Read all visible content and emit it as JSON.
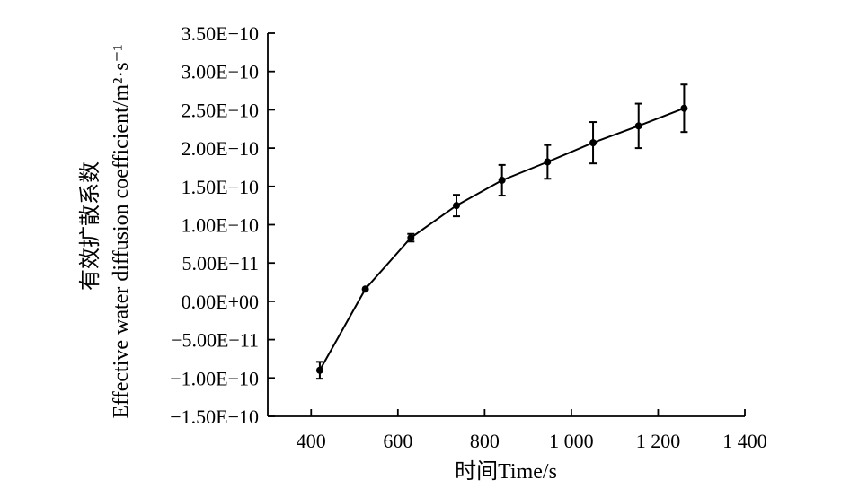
{
  "chart_data": {
    "type": "line",
    "title": "",
    "xlabel": "时间Time/s",
    "ylabel_cn": "有效扩散系数",
    "ylabel_en": "Effective water diffusion coefficient/m²·s⁻¹",
    "xlim": [
      300,
      1400
    ],
    "ylim": [
      -1.5e-10,
      3.5e-10
    ],
    "x_ticks": [
      400,
      600,
      800,
      1000,
      1200,
      1400
    ],
    "x_tick_labels": [
      "400",
      "600",
      "800",
      "1 000",
      "1 200",
      "1 400"
    ],
    "y_ticks": [
      3.5e-10,
      3e-10,
      2.5e-10,
      2e-10,
      1.5e-10,
      1e-10,
      5e-11,
      0,
      -5e-11,
      -1e-10,
      -1.5e-10
    ],
    "y_tick_labels": [
      "3.50E−10",
      "3.00E−10",
      "2.50E−10",
      "2.00E−10",
      "1.50E−10",
      "1.00E−10",
      "5.00E−11",
      "0.00E+00",
      "−5.00E−11",
      "−1.00E−10",
      "−1.50E−10"
    ],
    "grid": false,
    "legend": "none",
    "series": [
      {
        "x": [
          420,
          525,
          630,
          735,
          840,
          945,
          1050,
          1155,
          1260
        ],
        "y": [
          -9e-11,
          1.6e-11,
          8.3e-11,
          1.25e-10,
          1.58e-10,
          1.82e-10,
          2.07e-10,
          2.29e-10,
          2.52e-10
        ],
        "error": [
          1.1e-11,
          0,
          5e-12,
          1.4e-11,
          2e-11,
          2.2e-11,
          2.7e-11,
          2.9e-11,
          3.1e-11
        ],
        "color": "#000000"
      }
    ]
  }
}
